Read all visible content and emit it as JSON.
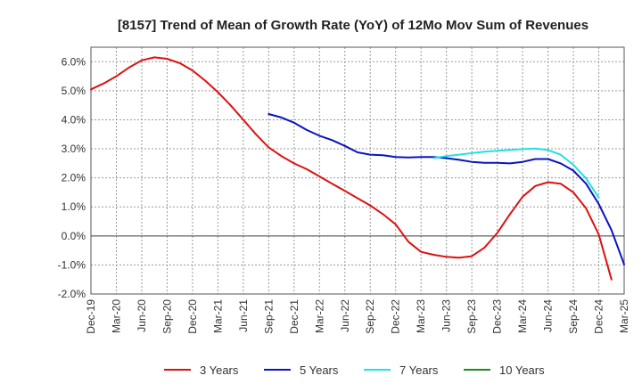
{
  "chart_data": {
    "type": "line",
    "title": "[8157]  Trend of Mean of Growth Rate (YoY) of 12Mo Mov Sum of Revenues",
    "xlabel": "",
    "ylabel": "",
    "ylim": [
      -2.0,
      6.5
    ],
    "y_ticks": [
      6.0,
      5.0,
      4.0,
      3.0,
      2.0,
      1.0,
      0.0,
      -1.0,
      -2.0
    ],
    "y_tick_labels": [
      "6.0%",
      "5.0%",
      "4.0%",
      "3.0%",
      "2.0%",
      "1.0%",
      "0.0%",
      "-1.0%",
      "-2.0%"
    ],
    "x_tick_labels": [
      "Dec-19",
      "Mar-20",
      "Jun-20",
      "Sep-20",
      "Dec-20",
      "Mar-21",
      "Jun-21",
      "Sep-21",
      "Dec-21",
      "Mar-22",
      "Jun-22",
      "Sep-22",
      "Dec-22",
      "Mar-23",
      "Jun-23",
      "Sep-23",
      "Dec-23",
      "Mar-24",
      "Jun-24",
      "Sep-24",
      "Dec-24",
      "Mar-25"
    ],
    "grid": true,
    "legend_position": "bottom",
    "series": [
      {
        "name": "3 Years",
        "color": "#dd1111",
        "start_index": 0,
        "values": [
          5.05,
          5.25,
          5.5,
          5.8,
          6.05,
          6.15,
          6.1,
          5.95,
          5.7,
          5.35,
          4.95,
          4.5,
          4.0,
          3.5,
          3.05,
          2.75,
          2.5,
          2.3,
          2.05,
          1.8,
          1.55,
          1.3,
          1.05,
          0.75,
          0.4,
          -0.2,
          -0.55,
          -0.65,
          -0.72,
          -0.75,
          -0.7,
          -0.4,
          0.1,
          0.75,
          1.35,
          1.72,
          1.85,
          1.8,
          1.5,
          0.95,
          0.05,
          -1.5
        ]
      },
      {
        "name": "5 Years",
        "color": "#0a14c0",
        "start_index": 14,
        "values": [
          4.2,
          4.08,
          3.9,
          3.65,
          3.45,
          3.3,
          3.1,
          2.88,
          2.8,
          2.78,
          2.72,
          2.7,
          2.72,
          2.72,
          2.68,
          2.62,
          2.55,
          2.52,
          2.52,
          2.5,
          2.55,
          2.65,
          2.65,
          2.5,
          2.25,
          1.8,
          1.1,
          0.2,
          -0.98
        ]
      },
      {
        "name": "7 Years",
        "color": "#22e0e6",
        "start_index": 27,
        "values": [
          2.68,
          2.75,
          2.8,
          2.85,
          2.9,
          2.93,
          2.96,
          2.99,
          3.01,
          2.96,
          2.8,
          2.45,
          1.98,
          1.32
        ]
      },
      {
        "name": "10 Years",
        "color": "#1a8c1a",
        "start_index": 0,
        "values": []
      }
    ]
  }
}
